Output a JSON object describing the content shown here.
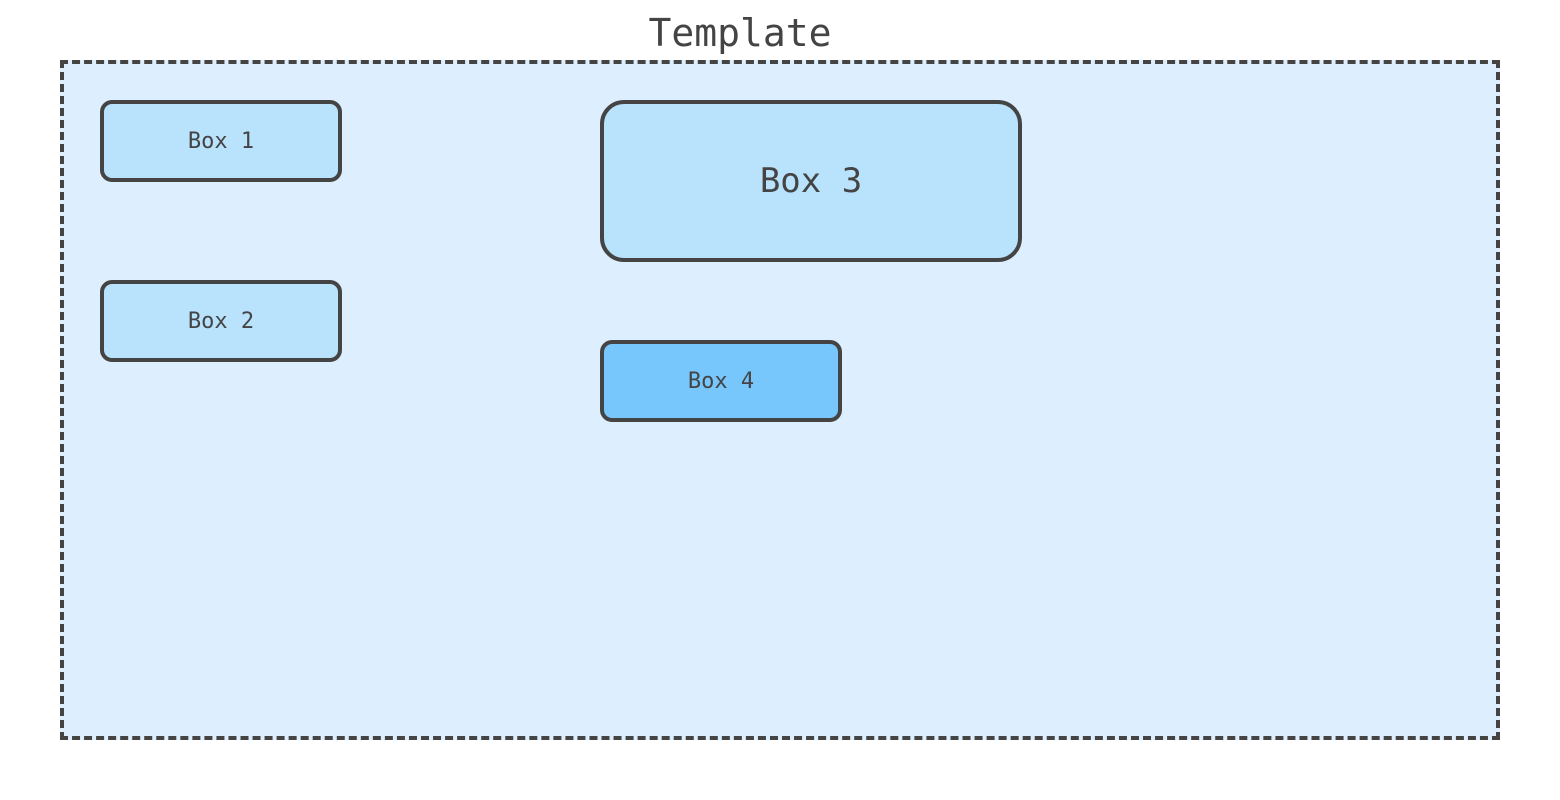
{
  "template": {
    "title": "Template",
    "fill_color": "#ddeffe",
    "border_color": "#444444",
    "border_style": "dashed"
  },
  "boxes": [
    {
      "label": "Box 1",
      "fill_color": "#b9e2fd"
    },
    {
      "label": "Box 2",
      "fill_color": "#b9e2fd"
    },
    {
      "label": "Box 3",
      "fill_color": "#b9e2fd"
    },
    {
      "label": "Box 4",
      "fill_color": "#77c6fc"
    }
  ]
}
